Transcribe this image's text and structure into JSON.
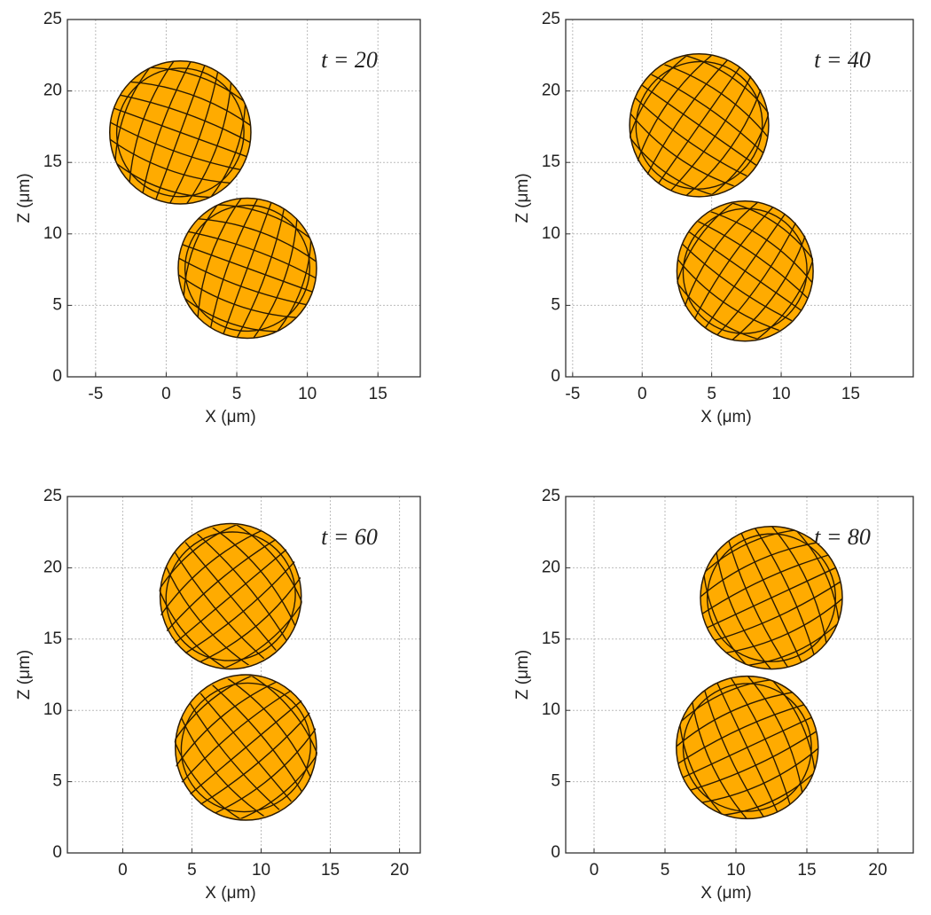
{
  "chart_data": [
    {
      "type": "circles",
      "annotation": "t = 20",
      "xlabel": "X (μm)",
      "ylabel": "Z (μm)",
      "color": "#ffab00",
      "x": [
        1.0,
        5.75
      ],
      "values": [
        17.1,
        7.6
      ],
      "sizes": [
        5.0,
        4.9
      ],
      "xlim": [
        -7,
        18
      ],
      "ylim": [
        0,
        25
      ],
      "xticks": [
        -5,
        0,
        5,
        10,
        15
      ],
      "yticks": [
        0,
        5,
        10,
        15,
        20,
        25
      ],
      "grid": true
    },
    {
      "type": "circles",
      "annotation": "t = 40",
      "xlabel": "X (μm)",
      "ylabel": "Z (μm)",
      "color": "#ffab00",
      "x": [
        4.1,
        7.4
      ],
      "values": [
        17.6,
        7.4
      ],
      "sizes": [
        5.0,
        4.9
      ],
      "xlim": [
        -5.5,
        19.5
      ],
      "ylim": [
        0,
        25
      ],
      "xticks": [
        -5,
        0,
        5,
        10,
        15
      ],
      "yticks": [
        0,
        5,
        10,
        15,
        20,
        25
      ],
      "grid": true
    },
    {
      "type": "circles",
      "annotation": "t = 60",
      "xlabel": "X (μm)",
      "ylabel": "Z (μm)",
      "color": "#ffab00",
      "x": [
        7.8,
        8.9
      ],
      "values": [
        18.0,
        7.4
      ],
      "sizes": [
        5.1,
        5.1
      ],
      "xlim": [
        -4,
        21.5
      ],
      "ylim": [
        0,
        25
      ],
      "xticks": [
        0,
        5,
        10,
        15,
        20
      ],
      "yticks": [
        0,
        5,
        10,
        15,
        20,
        25
      ],
      "grid": true
    },
    {
      "type": "circles",
      "annotation": "t = 80",
      "xlabel": "X (μm)",
      "ylabel": "Z (μm)",
      "color": "#ffab00",
      "x": [
        12.5,
        10.8
      ],
      "values": [
        17.9,
        7.4
      ],
      "sizes": [
        5.0,
        5.0
      ],
      "xlim": [
        -2,
        22.5
      ],
      "ylim": [
        0,
        25
      ],
      "xticks": [
        0,
        5,
        10,
        15,
        20
      ],
      "yticks": [
        0,
        5,
        10,
        15,
        20,
        25
      ],
      "grid": true
    }
  ]
}
